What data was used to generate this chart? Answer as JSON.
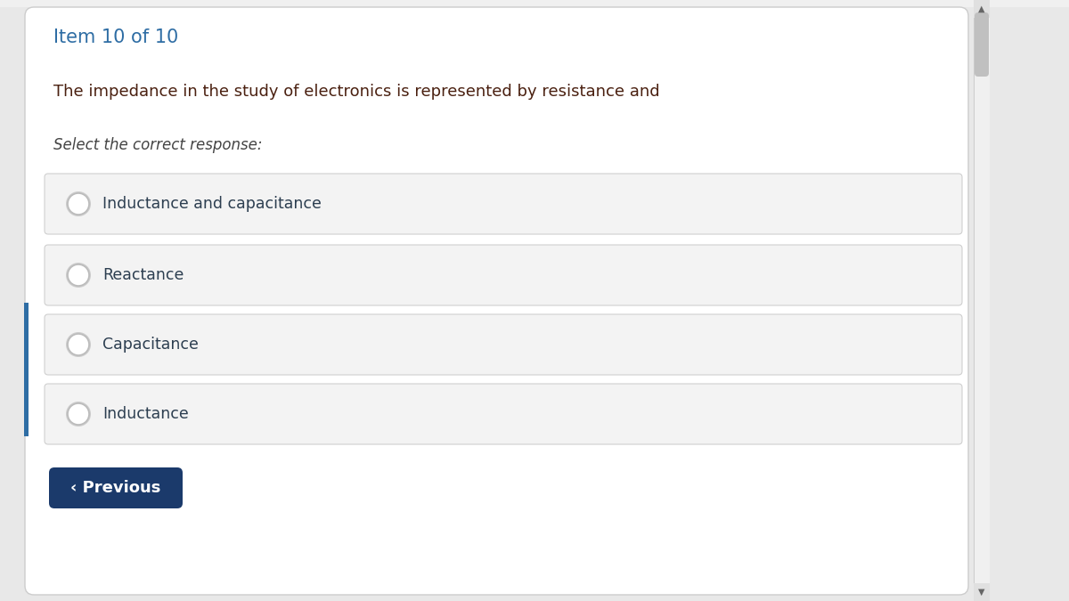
{
  "item_label": "Item 10 of 10",
  "item_label_color": "#2E6DA4",
  "question_text": "The impedance in the study of electronics is represented by resistance and",
  "question_color": "#4A2010",
  "instruction_text": "Select the correct response:",
  "instruction_color": "#444444",
  "options": [
    "Inductance and capacitance",
    "Reactance",
    "Capacitance",
    "Inductance"
  ],
  "option_text_color": "#2C3E50",
  "option_bg_color": "#F3F3F3",
  "option_border_color": "#D0D0D0",
  "radio_fill": "#FFFFFF",
  "radio_border": "#AAAAAA",
  "button_text": "‹ Previous",
  "button_bg": "#1B3A6B",
  "button_text_color": "#FFFFFF",
  "card_bg": "#FFFFFF",
  "card_border": "#CCCCCC",
  "page_bg": "#E8E8E8",
  "left_bar_color": "#2E6DA4",
  "scrollbar_track": "#F0F0F0",
  "scrollbar_thumb": "#C0C0C0",
  "top_bar_color": "#E8E8E8",
  "item_label_fontsize": 15,
  "question_fontsize": 13,
  "instruction_fontsize": 12,
  "option_fontsize": 12.5,
  "button_fontsize": 13
}
